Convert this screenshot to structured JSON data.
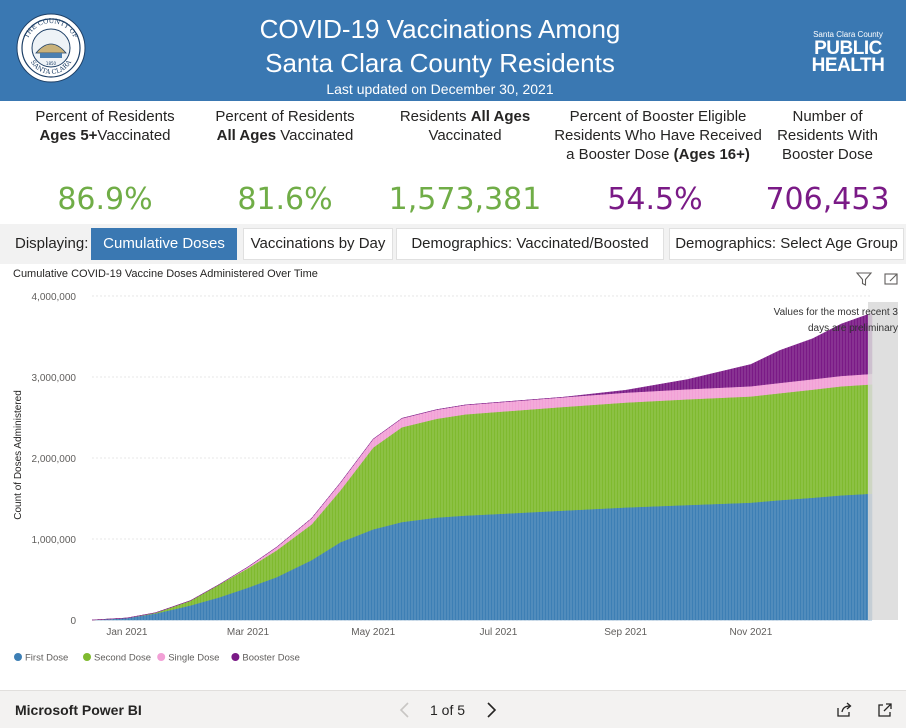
{
  "header": {
    "title_line1": "COVID-19 Vaccinations Among",
    "title_line2": "Santa Clara County Residents",
    "updated": "Last updated on December 30, 2021",
    "seal": {
      "name": "county-seal",
      "top_text": "THE COUNTY OF",
      "bottom_text": "SANTA CLARA",
      "year": "1850"
    },
    "logo": {
      "small": "Santa Clara County",
      "line1": "PUBLIC",
      "line2": "HEALTH"
    }
  },
  "kpis": [
    {
      "label_parts": [
        {
          "text": "Percent of Residents",
          "bold": false,
          "br": true
        },
        {
          "text": "Ages 5+",
          "bold": true
        },
        {
          "text": "Vaccinated",
          "bold": false
        }
      ],
      "value": "86.9%",
      "color": "#70ad47"
    },
    {
      "label_parts": [
        {
          "text": "Percent of Residents",
          "bold": false,
          "br": true
        },
        {
          "text": "All Ages",
          "bold": true
        },
        {
          "text": " Vaccinated",
          "bold": false
        }
      ],
      "value": "81.6%",
      "color": "#70ad47"
    },
    {
      "label_parts": [
        {
          "text": "Residents ",
          "bold": false
        },
        {
          "text": "All Ages",
          "bold": true,
          "br": true
        },
        {
          "text": "Vaccinated",
          "bold": false
        }
      ],
      "value": "1,573,381",
      "color": "#70ad47"
    },
    {
      "label_parts": [
        {
          "text": "Percent of Booster Eligible",
          "bold": false,
          "br": true
        },
        {
          "text": "Residents Who Have Received",
          "bold": false,
          "br": true
        },
        {
          "text": "a Booster Dose ",
          "bold": false
        },
        {
          "text": "(Ages 16+)",
          "bold": true
        }
      ],
      "value": "54.5%",
      "color": "#7a1a86"
    },
    {
      "label_parts": [
        {
          "text": "Number of",
          "bold": false,
          "br": true
        },
        {
          "text": "Residents With",
          "bold": false,
          "br": true
        },
        {
          "text": "Booster Dose",
          "bold": false
        }
      ],
      "value": "706,453",
      "color": "#7a1a86"
    }
  ],
  "tabs": {
    "label": "Displaying:",
    "items": [
      {
        "label": "Cumulative Doses",
        "active": true
      },
      {
        "label": "Vaccinations by Day",
        "active": false
      },
      {
        "label": "Demographics: Vaccinated/Boosted",
        "active": false
      },
      {
        "label": "Demographics: Select Age Group",
        "active": false
      }
    ]
  },
  "chart_title": "Cumulative COVID-19 Vaccine Doses Administered Over Time",
  "chart_icons": [
    "filter-icon",
    "focus-mode-icon"
  ],
  "chart_data": {
    "type": "area",
    "stacked": true,
    "title": "Cumulative COVID-19 Vaccine Doses Administered Over Time",
    "xlabel": "",
    "ylabel": "Count of Doses Administered",
    "ylim": [
      0,
      4000000
    ],
    "yticks": [
      0,
      1000000,
      2000000,
      3000000,
      4000000
    ],
    "ytick_labels": [
      "0",
      "1,000,000",
      "2,000,000",
      "3,000,000",
      "4,000,000"
    ],
    "xticks": [
      "2021-01-01",
      "2021-03-01",
      "2021-05-01",
      "2021-07-01",
      "2021-09-01",
      "2021-11-01"
    ],
    "xtick_labels": [
      "Jan 2021",
      "Mar 2021",
      "May 2021",
      "Jul 2021",
      "Sep 2021",
      "Nov 2021"
    ],
    "xlim": [
      "2020-12-15",
      "2021-12-30"
    ],
    "x": [
      "2020-12-15",
      "2021-01-01",
      "2021-01-15",
      "2021-02-01",
      "2021-02-15",
      "2021-03-01",
      "2021-03-15",
      "2021-04-01",
      "2021-04-15",
      "2021-05-01",
      "2021-05-15",
      "2021-06-01",
      "2021-06-15",
      "2021-07-01",
      "2021-08-01",
      "2021-09-01",
      "2021-10-01",
      "2021-11-01",
      "2021-11-15",
      "2021-12-01",
      "2021-12-15",
      "2021-12-30"
    ],
    "series": [
      {
        "name": "First Dose",
        "color": "#3d7fb5",
        "values": [
          0,
          25000,
          80000,
          180000,
          280000,
          400000,
          530000,
          740000,
          960000,
          1120000,
          1210000,
          1265000,
          1290000,
          1310000,
          1350000,
          1390000,
          1420000,
          1450000,
          1480000,
          1510000,
          1540000,
          1560000
        ]
      },
      {
        "name": "Second Dose",
        "color": "#7fba2f",
        "values": [
          0,
          0,
          10000,
          60000,
          160000,
          240000,
          330000,
          440000,
          640000,
          1010000,
          1170000,
          1220000,
          1250000,
          1260000,
          1280000,
          1295000,
          1305000,
          1310000,
          1320000,
          1335000,
          1345000,
          1350000
        ]
      },
      {
        "name": "Single Dose",
        "color": "#f2a0d6",
        "values": [
          0,
          0,
          0,
          0,
          0,
          15000,
          40000,
          75000,
          95000,
          105000,
          110000,
          112000,
          115000,
          118000,
          120000,
          122000,
          124000,
          126000,
          127000,
          128000,
          129000,
          130000
        ]
      },
      {
        "name": "Booster Dose",
        "color": "#7a1a86",
        "values": [
          0,
          0,
          0,
          0,
          0,
          0,
          0,
          0,
          0,
          0,
          0,
          0,
          0,
          0,
          0,
          30000,
          120000,
          270000,
          400000,
          500000,
          640000,
          750000
        ]
      }
    ],
    "annotation": "Values for the most recent 3 days are preliminary",
    "legend_position": "bottom-left",
    "grid": true
  },
  "footer": {
    "brand": "Microsoft Power BI",
    "page": "1 of 5"
  }
}
